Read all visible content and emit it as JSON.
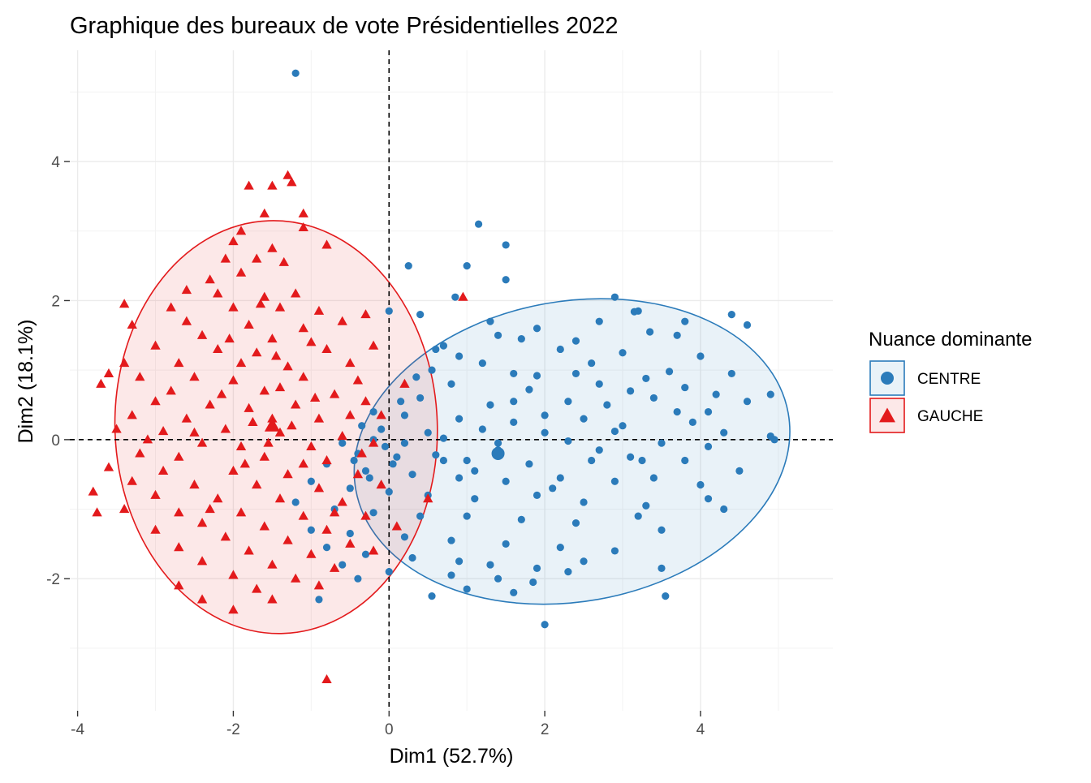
{
  "chart_data": {
    "type": "scatter",
    "title": "Graphique des bureaux de vote  Présidentielles 2022",
    "xlabel": "Dim1 (52.7%)",
    "ylabel": "Dim2 (18.1%)",
    "xlim": [
      -4.1,
      5.7
    ],
    "ylim": [
      -3.9,
      5.6
    ],
    "x_ticks": [
      -4,
      -2,
      0,
      2,
      4
    ],
    "x_tick_labels": [
      "-4",
      "-2",
      "0",
      "2",
      "4"
    ],
    "y_ticks": [
      -2,
      0,
      2,
      4
    ],
    "y_tick_labels": [
      "-2",
      "0",
      "2",
      "4"
    ],
    "grid": true,
    "reference_lines": {
      "x": 0,
      "y": 0,
      "style": "dashed"
    },
    "legend": {
      "title": "Nuance dominante",
      "placement": "right",
      "entries": [
        "CENTRE",
        "GAUCHE"
      ]
    },
    "colors": {
      "CENTRE": "#2b7bba",
      "GAUCHE": "#e31a1c"
    },
    "series": [
      {
        "name": "CENTRE",
        "marker": "circle",
        "ellipse": {
          "cx": 2.35,
          "cy": -0.17,
          "rx": 2.82,
          "ry": 2.16,
          "angle_deg": 10
        },
        "mean": [
          1.4,
          -0.2
        ],
        "points": [
          [
            -1.2,
            5.27
          ],
          [
            1.15,
            3.1
          ],
          [
            1.5,
            2.8
          ],
          [
            0.25,
            2.5
          ],
          [
            1.0,
            2.5
          ],
          [
            1.5,
            2.3
          ],
          [
            2.9,
            2.05
          ],
          [
            3.2,
            1.85
          ],
          [
            3.15,
            1.84
          ],
          [
            2.7,
            1.7
          ],
          [
            4.4,
            1.8
          ],
          [
            4.6,
            1.65
          ],
          [
            0.0,
            1.85
          ],
          [
            0.4,
            1.8
          ],
          [
            0.85,
            2.05
          ],
          [
            3.8,
            1.7
          ],
          [
            1.4,
            1.5
          ],
          [
            1.9,
            1.6
          ],
          [
            3.35,
            1.55
          ],
          [
            0.7,
            1.35
          ],
          [
            1.7,
            1.45
          ],
          [
            2.4,
            1.42
          ],
          [
            3.7,
            1.5
          ],
          [
            0.9,
            1.2
          ],
          [
            1.2,
            1.1
          ],
          [
            2.2,
            1.3
          ],
          [
            2.6,
            1.1
          ],
          [
            3.0,
            1.25
          ],
          [
            4.0,
            1.2
          ],
          [
            0.55,
            1.0
          ],
          [
            1.6,
            0.95
          ],
          [
            1.9,
            0.92
          ],
          [
            2.4,
            0.95
          ],
          [
            3.6,
            0.98
          ],
          [
            3.3,
            0.88
          ],
          [
            4.4,
            0.95
          ],
          [
            0.8,
            0.8
          ],
          [
            1.8,
            0.72
          ],
          [
            2.7,
            0.8
          ],
          [
            3.1,
            0.7
          ],
          [
            3.8,
            0.75
          ],
          [
            0.4,
            0.6
          ],
          [
            1.3,
            0.5
          ],
          [
            2.3,
            0.55
          ],
          [
            3.4,
            0.6
          ],
          [
            4.1,
            0.4
          ],
          [
            4.6,
            0.55
          ],
          [
            0.2,
            0.35
          ],
          [
            0.9,
            0.3
          ],
          [
            1.6,
            0.25
          ],
          [
            2.5,
            0.3
          ],
          [
            3.0,
            0.2
          ],
          [
            3.9,
            0.25
          ],
          [
            4.9,
            0.65
          ],
          [
            0.5,
            0.1
          ],
          [
            1.2,
            0.15
          ],
          [
            2.0,
            0.1
          ],
          [
            2.9,
            0.12
          ],
          [
            4.3,
            0.1
          ],
          [
            4.9,
            0.05
          ],
          [
            -0.2,
            0.0
          ],
          [
            0.2,
            -0.05
          ],
          [
            0.7,
            0.02
          ],
          [
            1.4,
            -0.05
          ],
          [
            1.4,
            -0.15
          ],
          [
            2.3,
            -0.02
          ],
          [
            3.5,
            -0.05
          ],
          [
            4.1,
            -0.1
          ],
          [
            4.95,
            0.0
          ],
          [
            -0.4,
            -0.2
          ],
          [
            0.1,
            -0.25
          ],
          [
            0.6,
            -0.22
          ],
          [
            1.0,
            -0.3
          ],
          [
            1.8,
            -0.35
          ],
          [
            2.6,
            -0.3
          ],
          [
            3.1,
            -0.25
          ],
          [
            3.8,
            -0.3
          ],
          [
            4.5,
            -0.45
          ],
          [
            -0.8,
            -0.35
          ],
          [
            -0.3,
            -0.45
          ],
          [
            0.3,
            -0.5
          ],
          [
            0.9,
            -0.55
          ],
          [
            1.5,
            -0.6
          ],
          [
            2.2,
            -0.55
          ],
          [
            2.9,
            -0.6
          ],
          [
            3.4,
            -0.55
          ],
          [
            4.0,
            -0.65
          ],
          [
            -1.0,
            -0.6
          ],
          [
            -0.5,
            -0.7
          ],
          [
            0.0,
            -0.75
          ],
          [
            0.5,
            -0.8
          ],
          [
            1.1,
            -0.85
          ],
          [
            1.9,
            -0.8
          ],
          [
            2.5,
            -0.9
          ],
          [
            3.3,
            -0.95
          ],
          [
            -1.2,
            -0.9
          ],
          [
            -0.7,
            -1.0
          ],
          [
            -0.2,
            -1.05
          ],
          [
            0.4,
            -1.1
          ],
          [
            1.0,
            -1.1
          ],
          [
            1.7,
            -1.15
          ],
          [
            2.4,
            -1.2
          ],
          [
            3.2,
            -1.1
          ],
          [
            4.3,
            -1.0
          ],
          [
            4.1,
            -0.85
          ],
          [
            -1.0,
            -1.3
          ],
          [
            -0.5,
            -1.35
          ],
          [
            0.2,
            -1.4
          ],
          [
            0.8,
            -1.45
          ],
          [
            1.5,
            -1.5
          ],
          [
            2.2,
            -1.55
          ],
          [
            2.9,
            -1.6
          ],
          [
            3.5,
            -1.3
          ],
          [
            -0.8,
            -1.55
          ],
          [
            -0.3,
            -1.65
          ],
          [
            0.3,
            -1.7
          ],
          [
            0.9,
            -1.75
          ],
          [
            1.3,
            -1.8
          ],
          [
            1.9,
            -1.85
          ],
          [
            2.5,
            -1.75
          ],
          [
            -0.6,
            -1.8
          ],
          [
            0.0,
            -1.9
          ],
          [
            0.8,
            -1.95
          ],
          [
            1.4,
            -2.0
          ],
          [
            1.85,
            -2.05
          ],
          [
            2.3,
            -1.9
          ],
          [
            3.5,
            -1.85
          ],
          [
            -0.4,
            -2.0
          ],
          [
            0.55,
            -2.25
          ],
          [
            1.0,
            -2.15
          ],
          [
            1.6,
            -2.2
          ],
          [
            3.55,
            -2.25
          ],
          [
            -0.9,
            -2.3
          ],
          [
            2.0,
            -2.66
          ],
          [
            -0.2,
            0.4
          ],
          [
            -0.1,
            0.15
          ],
          [
            -0.05,
            -0.1
          ],
          [
            0.05,
            -0.35
          ],
          [
            -0.25,
            -0.55
          ],
          [
            -0.45,
            -0.3
          ],
          [
            -0.6,
            -0.05
          ],
          [
            -0.35,
            0.2
          ],
          [
            0.15,
            0.55
          ],
          [
            0.35,
            0.9
          ],
          [
            0.6,
            1.3
          ],
          [
            1.3,
            1.7
          ],
          [
            2.0,
            0.35
          ],
          [
            2.7,
            -0.15
          ],
          [
            3.7,
            0.4
          ],
          [
            4.2,
            0.65
          ],
          [
            1.1,
            -0.45
          ],
          [
            1.6,
            0.55
          ],
          [
            2.1,
            -0.7
          ],
          [
            2.8,
            0.5
          ],
          [
            3.25,
            -0.3
          ],
          [
            0.7,
            -0.3
          ]
        ]
      },
      {
        "name": "GAUCHE",
        "marker": "triangle",
        "ellipse": {
          "cx": -1.45,
          "cy": 0.18,
          "rx": 2.07,
          "ry": 2.97,
          "angle_deg": 2
        },
        "mean": [
          -1.5,
          0.2
        ],
        "points": [
          [
            -1.3,
            3.8
          ],
          [
            -1.25,
            3.7
          ],
          [
            -1.5,
            3.65
          ],
          [
            -1.8,
            3.65
          ],
          [
            -1.6,
            3.25
          ],
          [
            -1.1,
            3.25
          ],
          [
            -1.9,
            3.0
          ],
          [
            -1.1,
            3.05
          ],
          [
            -2.0,
            2.85
          ],
          [
            -1.5,
            2.75
          ],
          [
            -1.7,
            2.6
          ],
          [
            -0.8,
            2.8
          ],
          [
            -2.1,
            2.6
          ],
          [
            -1.35,
            2.55
          ],
          [
            -2.3,
            2.3
          ],
          [
            -1.9,
            2.4
          ],
          [
            -2.6,
            2.15
          ],
          [
            -2.2,
            2.1
          ],
          [
            -1.6,
            2.05
          ],
          [
            -1.2,
            2.1
          ],
          [
            -3.4,
            1.95
          ],
          [
            -2.8,
            1.9
          ],
          [
            -2.0,
            1.9
          ],
          [
            -1.4,
            1.9
          ],
          [
            -0.9,
            1.85
          ],
          [
            -0.3,
            1.8
          ],
          [
            -3.3,
            1.65
          ],
          [
            -2.6,
            1.7
          ],
          [
            -1.8,
            1.65
          ],
          [
            -1.1,
            1.6
          ],
          [
            -0.6,
            1.7
          ],
          [
            -2.4,
            1.5
          ],
          [
            -1.5,
            1.45
          ],
          [
            -1.0,
            1.4
          ],
          [
            -3.0,
            1.35
          ],
          [
            -2.2,
            1.3
          ],
          [
            -1.7,
            1.25
          ],
          [
            -0.8,
            1.3
          ],
          [
            -0.2,
            1.35
          ],
          [
            -3.4,
            1.1
          ],
          [
            -2.7,
            1.1
          ],
          [
            -1.9,
            1.1
          ],
          [
            -1.3,
            1.05
          ],
          [
            -0.5,
            1.1
          ],
          [
            -3.6,
            0.95
          ],
          [
            -3.2,
            0.9
          ],
          [
            -2.5,
            0.9
          ],
          [
            -2.0,
            0.85
          ],
          [
            -1.1,
            0.9
          ],
          [
            -0.4,
            0.85
          ],
          [
            -3.7,
            0.8
          ],
          [
            -2.8,
            0.7
          ],
          [
            -1.6,
            0.7
          ],
          [
            -0.7,
            0.65
          ],
          [
            -3.0,
            0.55
          ],
          [
            -2.3,
            0.5
          ],
          [
            -1.8,
            0.45
          ],
          [
            -1.2,
            0.5
          ],
          [
            -0.3,
            0.55
          ],
          [
            -3.3,
            0.35
          ],
          [
            -2.6,
            0.3
          ],
          [
            -1.5,
            0.3
          ],
          [
            -0.9,
            0.3
          ],
          [
            -0.1,
            0.35
          ],
          [
            -3.5,
            0.15
          ],
          [
            -2.9,
            0.12
          ],
          [
            -2.1,
            0.15
          ],
          [
            -1.4,
            0.1
          ],
          [
            -0.6,
            0.05
          ],
          [
            -2.4,
            -0.05
          ],
          [
            -1.9,
            -0.1
          ],
          [
            -1.0,
            -0.1
          ],
          [
            -0.2,
            -0.05
          ],
          [
            -3.2,
            -0.2
          ],
          [
            -2.7,
            -0.25
          ],
          [
            -1.6,
            -0.25
          ],
          [
            -0.8,
            -0.3
          ],
          [
            -3.6,
            -0.4
          ],
          [
            -2.9,
            -0.45
          ],
          [
            -2.0,
            -0.45
          ],
          [
            -1.3,
            -0.5
          ],
          [
            -0.4,
            -0.5
          ],
          [
            -3.3,
            -0.6
          ],
          [
            -2.5,
            -0.65
          ],
          [
            -1.7,
            -0.65
          ],
          [
            -0.9,
            -0.7
          ],
          [
            -0.1,
            -0.65
          ],
          [
            -3.8,
            -0.75
          ],
          [
            -3.0,
            -0.8
          ],
          [
            -2.2,
            -0.85
          ],
          [
            -1.4,
            -0.85
          ],
          [
            -0.6,
            -0.9
          ],
          [
            -3.4,
            -1.0
          ],
          [
            -2.7,
            -1.05
          ],
          [
            -1.9,
            -1.05
          ],
          [
            -1.1,
            -1.1
          ],
          [
            -0.3,
            -1.1
          ],
          [
            -3.75,
            -1.05
          ],
          [
            -2.4,
            -1.2
          ],
          [
            -1.6,
            -1.25
          ],
          [
            -0.8,
            -1.3
          ],
          [
            0.1,
            -1.25
          ],
          [
            -3.0,
            -1.3
          ],
          [
            -2.1,
            -1.4
          ],
          [
            -1.3,
            -1.45
          ],
          [
            -0.5,
            -1.5
          ],
          [
            -2.7,
            -1.55
          ],
          [
            -1.8,
            -1.6
          ],
          [
            -1.0,
            -1.65
          ],
          [
            -0.2,
            -1.6
          ],
          [
            -2.4,
            -1.75
          ],
          [
            -1.5,
            -1.8
          ],
          [
            -0.7,
            -1.85
          ],
          [
            -2.0,
            -1.95
          ],
          [
            -1.2,
            -2.0
          ],
          [
            -2.7,
            -2.1
          ],
          [
            -1.7,
            -2.15
          ],
          [
            -0.9,
            -2.1
          ],
          [
            -2.4,
            -2.3
          ],
          [
            -1.5,
            -2.3
          ],
          [
            -2.0,
            -2.45
          ],
          [
            -0.8,
            -3.45
          ],
          [
            -1.4,
            0.75
          ],
          [
            -1.25,
            0.2
          ],
          [
            -1.55,
            -0.05
          ],
          [
            -1.1,
            -0.35
          ],
          [
            -1.75,
            0.25
          ],
          [
            -2.15,
            0.65
          ],
          [
            -0.95,
            0.6
          ],
          [
            -1.45,
            1.2
          ],
          [
            -2.05,
            1.45
          ],
          [
            -2.5,
            0.1
          ],
          [
            -0.5,
            0.35
          ],
          [
            -0.35,
            -0.2
          ],
          [
            -1.85,
            -0.35
          ],
          [
            -2.3,
            -1.0
          ],
          [
            0.2,
            0.8
          ],
          [
            0.5,
            -0.85
          ],
          [
            0.95,
            2.05
          ],
          [
            -3.1,
            0.0
          ],
          [
            -0.7,
            -1.05
          ],
          [
            -1.65,
            1.95
          ]
        ]
      }
    ]
  }
}
